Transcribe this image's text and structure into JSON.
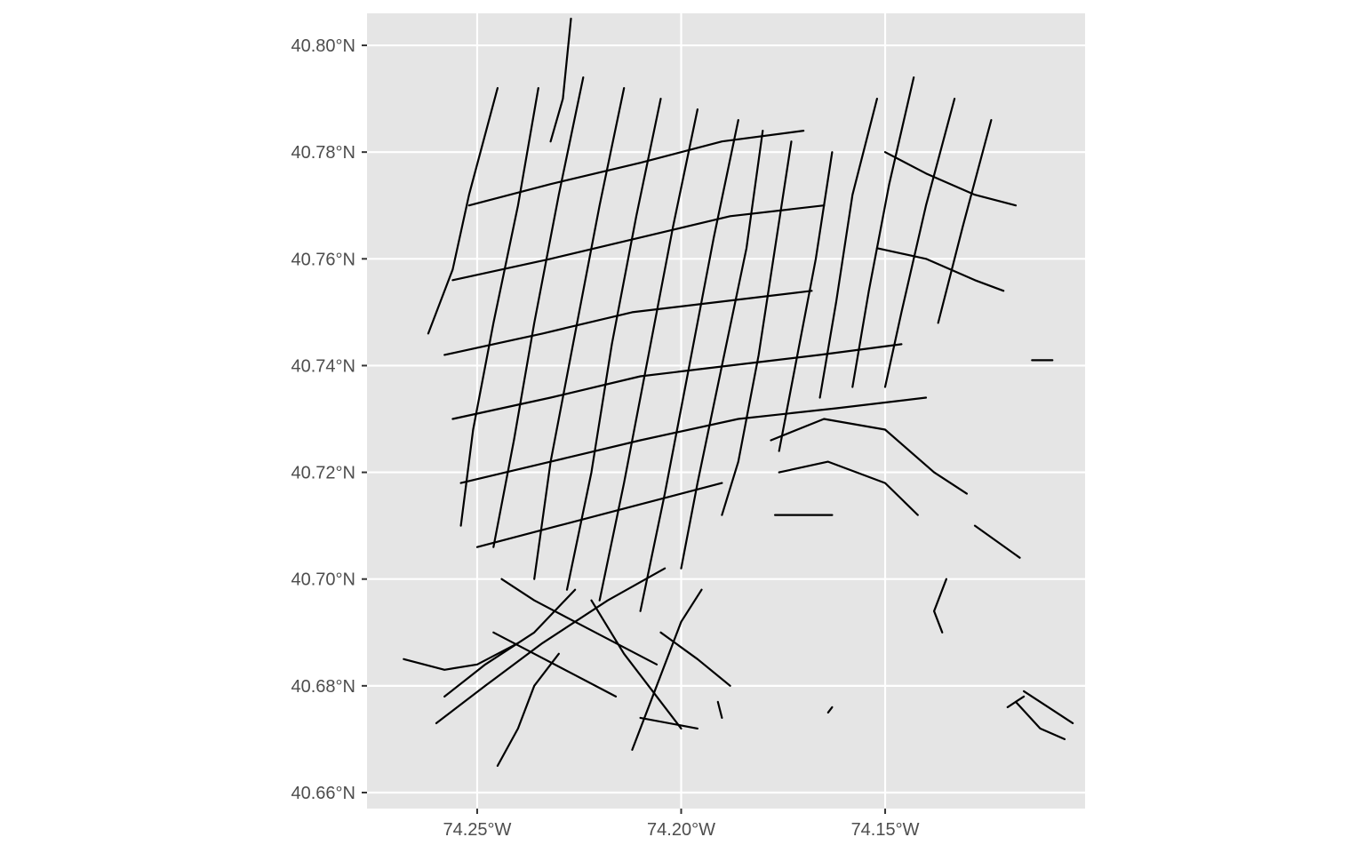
{
  "map": {
    "type": "street-network",
    "panel_background": "#e5e5e5",
    "gridline_color": "#ffffff",
    "line_color": "#000000",
    "grid": true,
    "legend": "none",
    "x_axis": {
      "ticks": [
        -74.25,
        -74.2,
        -74.15
      ],
      "tick_labels": [
        "74.25°W",
        "74.20°W",
        "74.15°W"
      ],
      "range": [
        -74.277,
        -74.101
      ]
    },
    "y_axis": {
      "ticks": [
        40.66,
        40.68,
        40.7,
        40.72,
        40.74,
        40.76,
        40.78,
        40.8
      ],
      "tick_labels": [
        "40.66°N",
        "40.68°N",
        "40.70°N",
        "40.72°N",
        "40.74°N",
        "40.76°N",
        "40.78°N",
        "40.80°N"
      ],
      "range": [
        40.657,
        40.806
      ]
    },
    "street_segments": [
      [
        [
          -74.245,
          40.792
        ],
        [
          -74.252,
          40.772
        ],
        [
          -74.256,
          40.758
        ],
        [
          -74.262,
          40.746
        ]
      ],
      [
        [
          -74.235,
          40.792
        ],
        [
          -74.24,
          40.77
        ],
        [
          -74.246,
          40.748
        ],
        [
          -74.251,
          40.728
        ],
        [
          -74.254,
          40.71
        ]
      ],
      [
        [
          -74.224,
          40.794
        ],
        [
          -74.23,
          40.772
        ],
        [
          -74.236,
          40.748
        ],
        [
          -74.241,
          40.726
        ],
        [
          -74.246,
          40.706
        ]
      ],
      [
        [
          -74.214,
          40.792
        ],
        [
          -74.22,
          40.77
        ],
        [
          -74.226,
          40.746
        ],
        [
          -74.232,
          40.722
        ],
        [
          -74.236,
          40.7
        ]
      ],
      [
        [
          -74.205,
          40.79
        ],
        [
          -74.211,
          40.768
        ],
        [
          -74.217,
          40.744
        ],
        [
          -74.222,
          40.72
        ],
        [
          -74.228,
          40.698
        ]
      ],
      [
        [
          -74.196,
          40.788
        ],
        [
          -74.202,
          40.766
        ],
        [
          -74.208,
          40.742
        ],
        [
          -74.214,
          40.718
        ],
        [
          -74.22,
          40.696
        ]
      ],
      [
        [
          -74.186,
          40.786
        ],
        [
          -74.192,
          40.764
        ],
        [
          -74.198,
          40.74
        ],
        [
          -74.204,
          40.716
        ],
        [
          -74.21,
          40.694
        ]
      ],
      [
        [
          -74.18,
          40.784
        ],
        [
          -74.184,
          40.762
        ],
        [
          -74.19,
          40.74
        ],
        [
          -74.196,
          40.718
        ],
        [
          -74.2,
          40.702
        ]
      ],
      [
        [
          -74.173,
          40.782
        ],
        [
          -74.177,
          40.762
        ],
        [
          -74.181,
          40.742
        ],
        [
          -74.186,
          40.722
        ],
        [
          -74.19,
          40.712
        ]
      ],
      [
        [
          -74.163,
          40.78
        ],
        [
          -74.167,
          40.76
        ],
        [
          -74.172,
          40.74
        ],
        [
          -74.176,
          40.724
        ]
      ],
      [
        [
          -74.152,
          40.79
        ],
        [
          -74.158,
          40.772
        ],
        [
          -74.162,
          40.752
        ],
        [
          -74.166,
          40.734
        ]
      ],
      [
        [
          -74.143,
          40.794
        ],
        [
          -74.149,
          40.774
        ],
        [
          -74.154,
          40.754
        ],
        [
          -74.158,
          40.736
        ]
      ],
      [
        [
          -74.133,
          40.79
        ],
        [
          -74.14,
          40.77
        ],
        [
          -74.146,
          40.75
        ],
        [
          -74.15,
          40.736
        ]
      ],
      [
        [
          -74.124,
          40.786
        ],
        [
          -74.131,
          40.766
        ],
        [
          -74.137,
          40.748
        ]
      ],
      [
        [
          -74.252,
          40.77
        ],
        [
          -74.232,
          40.774
        ],
        [
          -74.21,
          40.778
        ],
        [
          -74.19,
          40.782
        ],
        [
          -74.17,
          40.784
        ]
      ],
      [
        [
          -74.256,
          40.756
        ],
        [
          -74.232,
          40.76
        ],
        [
          -74.21,
          40.764
        ],
        [
          -74.188,
          40.768
        ],
        [
          -74.165,
          40.77
        ]
      ],
      [
        [
          -74.258,
          40.742
        ],
        [
          -74.234,
          40.746
        ],
        [
          -74.212,
          40.75
        ],
        [
          -74.19,
          40.752
        ],
        [
          -74.168,
          40.754
        ]
      ],
      [
        [
          -74.256,
          40.73
        ],
        [
          -74.232,
          40.734
        ],
        [
          -74.21,
          40.738
        ],
        [
          -74.188,
          40.74
        ],
        [
          -74.166,
          40.742
        ],
        [
          -74.146,
          40.744
        ]
      ],
      [
        [
          -74.254,
          40.718
        ],
        [
          -74.232,
          40.722
        ],
        [
          -74.21,
          40.726
        ],
        [
          -74.186,
          40.73
        ],
        [
          -74.162,
          40.732
        ],
        [
          -74.14,
          40.734
        ]
      ],
      [
        [
          -74.25,
          40.706
        ],
        [
          -74.23,
          40.71
        ],
        [
          -74.21,
          40.714
        ],
        [
          -74.19,
          40.718
        ]
      ],
      [
        [
          -74.178,
          40.726
        ],
        [
          -74.165,
          40.73
        ],
        [
          -74.15,
          40.728
        ],
        [
          -74.138,
          40.72
        ],
        [
          -74.13,
          40.716
        ]
      ],
      [
        [
          -74.176,
          40.72
        ],
        [
          -74.164,
          40.722
        ],
        [
          -74.15,
          40.718
        ],
        [
          -74.142,
          40.712
        ]
      ],
      [
        [
          -74.15,
          40.78
        ],
        [
          -74.14,
          40.776
        ],
        [
          -74.128,
          40.772
        ],
        [
          -74.118,
          40.77
        ]
      ],
      [
        [
          -74.152,
          40.762
        ],
        [
          -74.14,
          40.76
        ],
        [
          -74.128,
          40.756
        ],
        [
          -74.121,
          40.754
        ]
      ],
      [
        [
          -74.244,
          40.7
        ],
        [
          -74.236,
          40.696
        ],
        [
          -74.226,
          40.692
        ],
        [
          -74.216,
          40.688
        ],
        [
          -74.206,
          40.684
        ]
      ],
      [
        [
          -74.246,
          40.69
        ],
        [
          -74.236,
          40.686
        ],
        [
          -74.226,
          40.682
        ],
        [
          -74.216,
          40.678
        ]
      ],
      [
        [
          -74.268,
          40.685
        ],
        [
          -74.258,
          40.683
        ],
        [
          -74.25,
          40.684
        ],
        [
          -74.24,
          40.688
        ]
      ],
      [
        [
          -74.258,
          40.678
        ],
        [
          -74.248,
          40.684
        ],
        [
          -74.236,
          40.69
        ],
        [
          -74.226,
          40.698
        ]
      ],
      [
        [
          -74.26,
          40.673
        ],
        [
          -74.248,
          40.68
        ],
        [
          -74.234,
          40.688
        ],
        [
          -74.218,
          40.696
        ],
        [
          -74.204,
          40.702
        ]
      ],
      [
        [
          -74.245,
          40.665
        ],
        [
          -74.24,
          40.672
        ],
        [
          -74.236,
          40.68
        ],
        [
          -74.23,
          40.686
        ]
      ],
      [
        [
          -74.212,
          40.668
        ],
        [
          -74.206,
          40.68
        ],
        [
          -74.2,
          40.692
        ],
        [
          -74.195,
          40.698
        ]
      ],
      [
        [
          -74.21,
          40.674
        ],
        [
          -74.196,
          40.672
        ]
      ],
      [
        [
          -74.205,
          40.69
        ],
        [
          -74.196,
          40.685
        ],
        [
          -74.188,
          40.68
        ]
      ],
      [
        [
          -74.222,
          40.696
        ],
        [
          -74.214,
          40.686
        ],
        [
          -74.206,
          40.678
        ],
        [
          -74.2,
          40.672
        ]
      ],
      [
        [
          -74.177,
          40.712
        ],
        [
          -74.163,
          40.712
        ]
      ],
      [
        [
          -74.128,
          40.71
        ],
        [
          -74.117,
          40.704
        ]
      ],
      [
        [
          -74.135,
          40.7
        ],
        [
          -74.138,
          40.694
        ],
        [
          -74.136,
          40.69
        ]
      ],
      [
        [
          -74.114,
          40.741
        ],
        [
          -74.109,
          40.741
        ]
      ],
      [
        [
          -74.118,
          40.677
        ],
        [
          -74.112,
          40.672
        ],
        [
          -74.106,
          40.67
        ]
      ],
      [
        [
          -74.116,
          40.679
        ],
        [
          -74.11,
          40.676
        ],
        [
          -74.104,
          40.673
        ]
      ],
      [
        [
          -74.12,
          40.676
        ],
        [
          -74.116,
          40.678
        ]
      ],
      [
        [
          -74.164,
          40.675
        ],
        [
          -74.163,
          40.676
        ]
      ],
      [
        [
          -74.191,
          40.677
        ],
        [
          -74.19,
          40.674
        ]
      ],
      [
        [
          -74.227,
          40.805
        ],
        [
          -74.229,
          40.79
        ],
        [
          -74.232,
          40.782
        ]
      ]
    ]
  }
}
